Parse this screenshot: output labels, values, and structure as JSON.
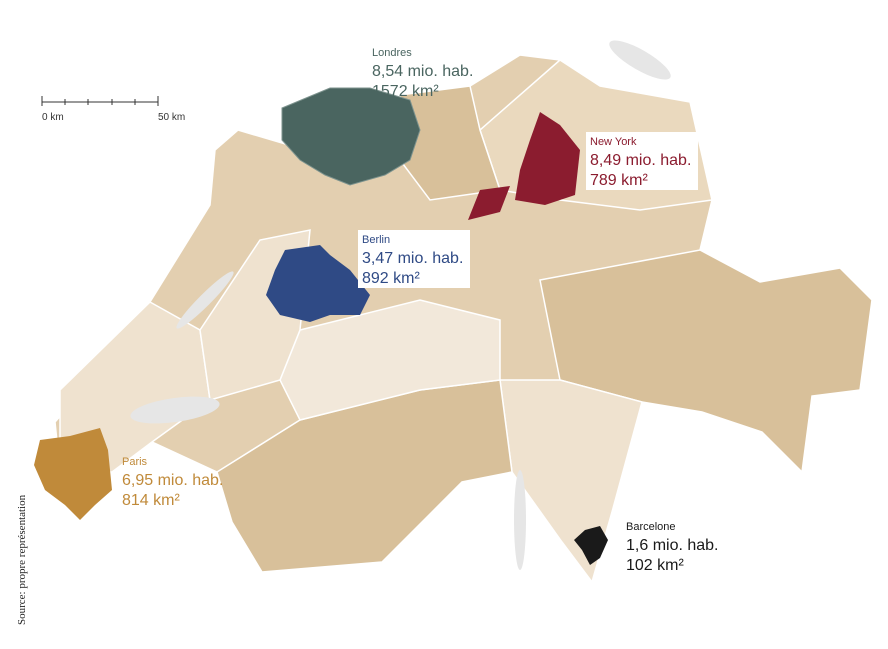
{
  "scale_bar": {
    "start_label": "0 km",
    "end_label": "50 km"
  },
  "cities": [
    {
      "name": "Londres",
      "population": "8,54 mio. hab.",
      "area": "1572 km²"
    },
    {
      "name": "New York",
      "population": "8,49 mio. hab.",
      "area": "789 km²"
    },
    {
      "name": "Berlin",
      "population": "3,47 mio. hab.",
      "area": "892 km²"
    },
    {
      "name": "Paris",
      "population": "6,95 mio. hab.",
      "area": "814 km²"
    },
    {
      "name": "Barcelone",
      "population": "1,6 mio. hab.",
      "area": "102 km²"
    }
  ],
  "source": "Source: propre représentation"
}
